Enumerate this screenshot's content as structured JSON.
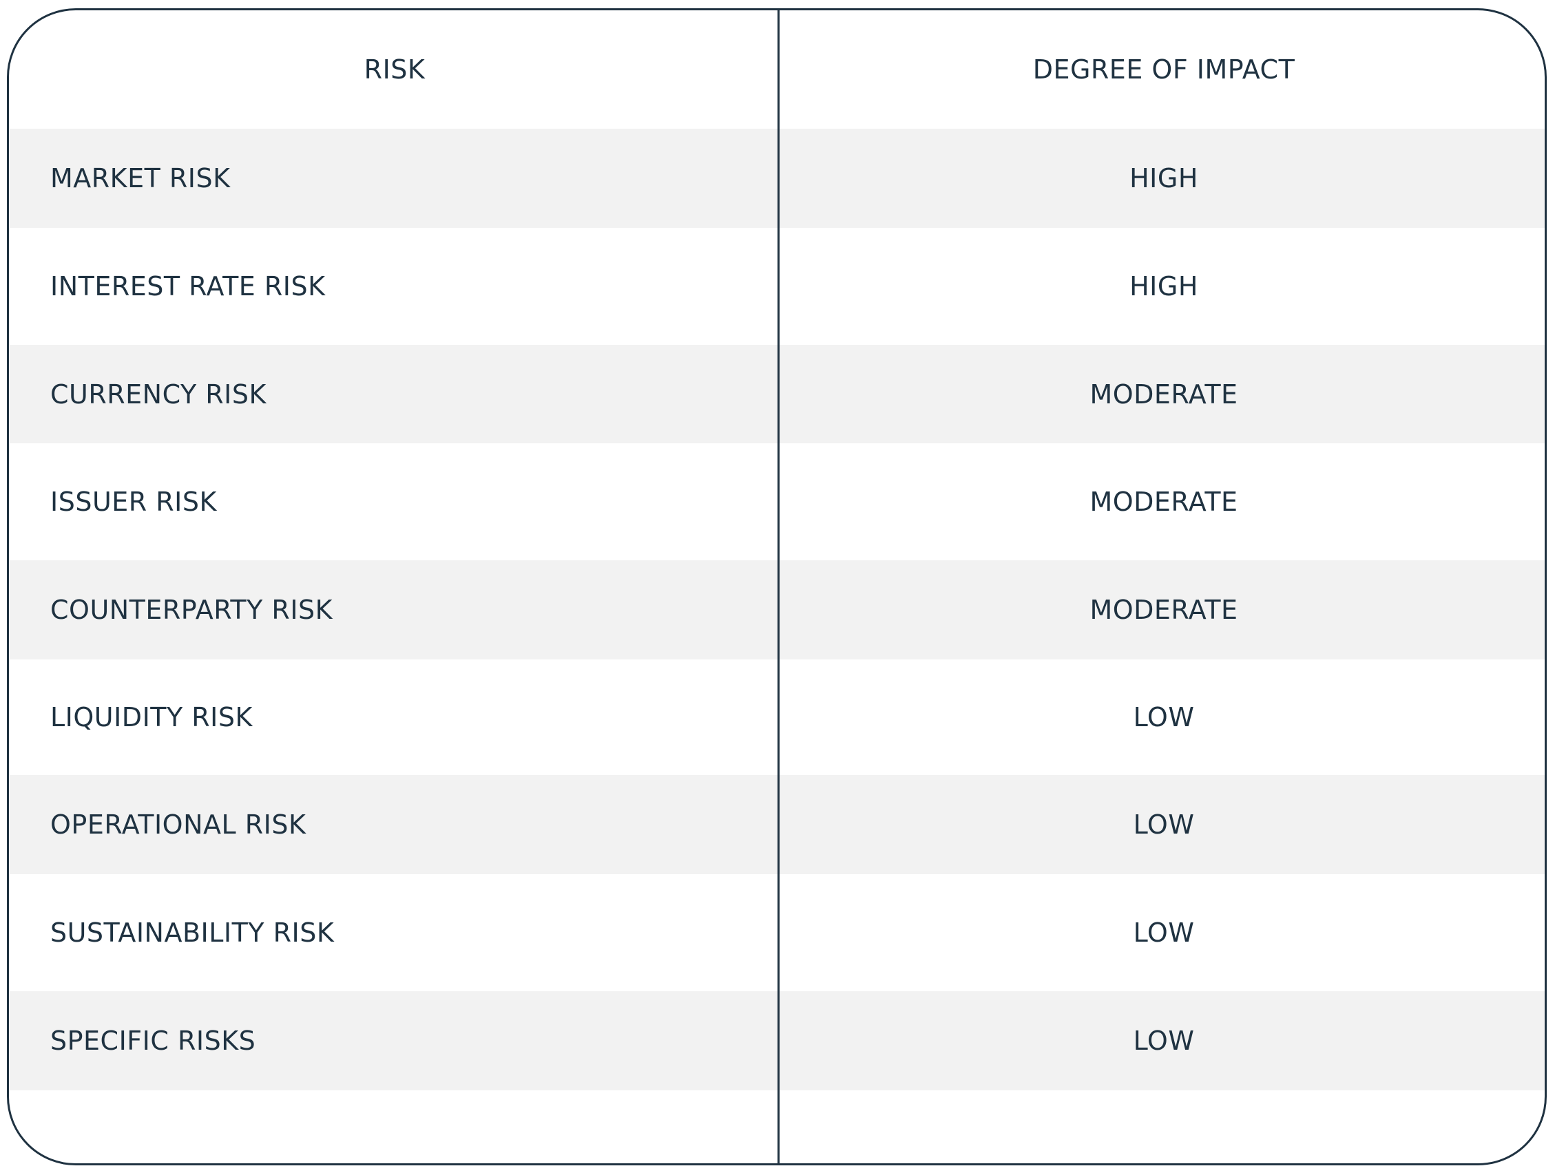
{
  "table": {
    "headers": {
      "risk": "RISK",
      "impact": "DEGREE OF IMPACT"
    },
    "rows": [
      {
        "risk": "MARKET RISK",
        "impact": "HIGH"
      },
      {
        "risk": "INTEREST RATE RISK",
        "impact": "HIGH"
      },
      {
        "risk": "CURRENCY RISK",
        "impact": "MODERATE"
      },
      {
        "risk": "ISSUER RISK",
        "impact": "MODERATE"
      },
      {
        "risk": "COUNTERPARTY RISK",
        "impact": "MODERATE"
      },
      {
        "risk": "LIQUIDITY RISK",
        "impact": "LOW"
      },
      {
        "risk": "OPERATIONAL RISK",
        "impact": "LOW"
      },
      {
        "risk": "SUSTAINABILITY RISK",
        "impact": "LOW"
      },
      {
        "risk": "SPECIFIC RISKS",
        "impact": "LOW"
      }
    ]
  },
  "colors": {
    "text": "#1f3241",
    "stripe": "#f2f2f2",
    "border": "#1f3241"
  }
}
